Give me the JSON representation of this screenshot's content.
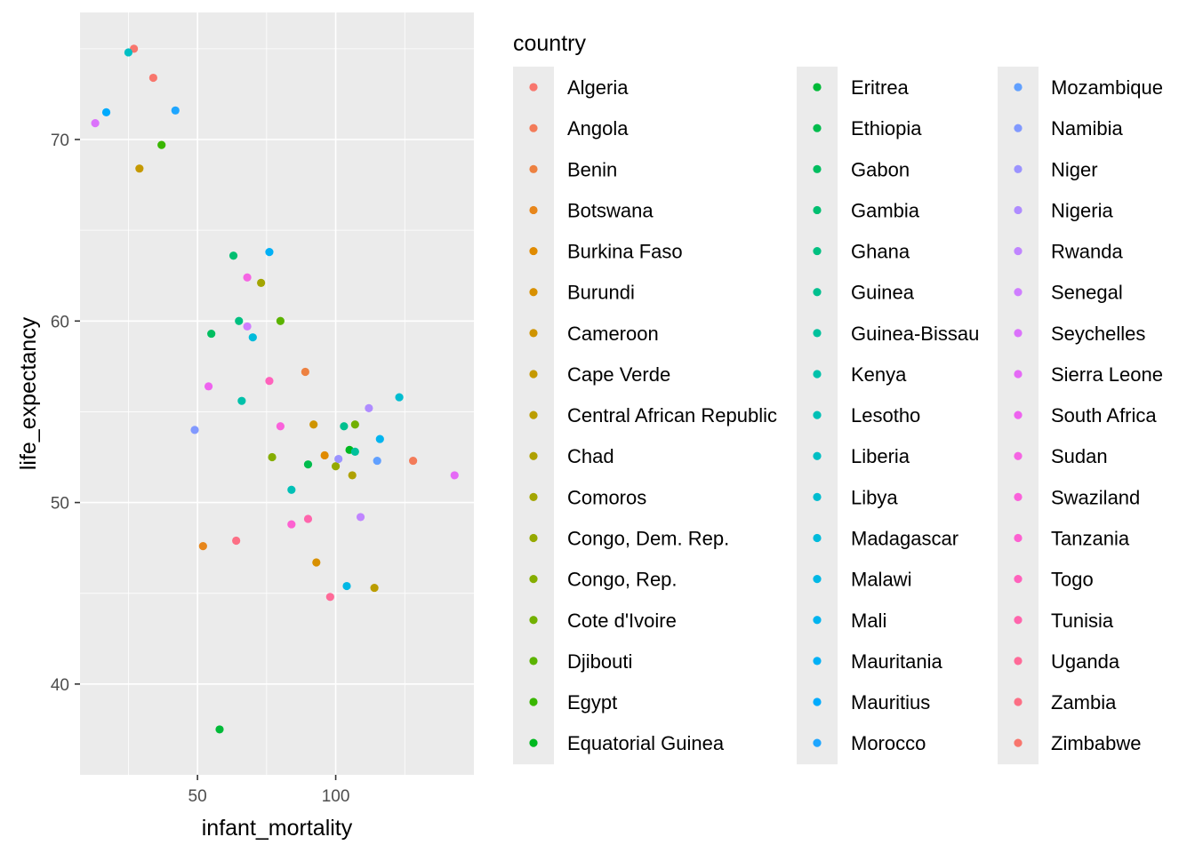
{
  "chart_data": {
    "type": "scatter",
    "xlabel": "infant_mortality",
    "ylabel": "life_expectancy",
    "xlim": [
      7.5,
      150
    ],
    "ylim": [
      35,
      77
    ],
    "x_ticks": [
      50,
      100
    ],
    "x_tick_labels": [
      "50",
      "100"
    ],
    "y_ticks": [
      40,
      50,
      60,
      70
    ],
    "y_tick_labels": [
      "40",
      "50",
      "60",
      "70"
    ],
    "grid": true,
    "panel_background": "#ebebeb",
    "legend": {
      "title": "country",
      "placement": "right",
      "columns": 3
    },
    "series": [
      {
        "name": "Algeria",
        "color": "#F8766D",
        "x": 27,
        "y": 75
      },
      {
        "name": "Angola",
        "color": "#F37B59",
        "x": 128,
        "y": 52.3
      },
      {
        "name": "Benin",
        "color": "#ED8141",
        "x": 89,
        "y": 57.2
      },
      {
        "name": "Botswana",
        "color": "#E7861B",
        "x": 52,
        "y": 47.6
      },
      {
        "name": "Burkina Faso",
        "color": "#E08B00",
        "x": 96,
        "y": 52.6
      },
      {
        "name": "Burundi",
        "color": "#D89000",
        "x": 93,
        "y": 46.7
      },
      {
        "name": "Cameroon",
        "color": "#CF9400",
        "x": 92,
        "y": 54.3
      },
      {
        "name": "Cape Verde",
        "color": "#C59900",
        "x": 29,
        "y": 68.4
      },
      {
        "name": "Central African Republic",
        "color": "#BB9D00",
        "x": 114,
        "y": 45.3
      },
      {
        "name": "Chad",
        "color": "#AFA100",
        "x": 106,
        "y": 51.5
      },
      {
        "name": "Comoros",
        "color": "#A3A500",
        "x": 73,
        "y": 62.1
      },
      {
        "name": "Congo, Dem. Rep.",
        "color": "#95A900",
        "x": 100,
        "y": 52.0
      },
      {
        "name": "Congo, Rep.",
        "color": "#85AD00",
        "x": 77,
        "y": 52.5
      },
      {
        "name": "Cote d'Ivoire",
        "color": "#72B000",
        "x": 107,
        "y": 54.3
      },
      {
        "name": "Djibouti",
        "color": "#5BB300",
        "x": 80,
        "y": 60.0
      },
      {
        "name": "Egypt",
        "color": "#39B600",
        "x": 37,
        "y": 69.7
      },
      {
        "name": "Equatorial Guinea",
        "color": "#00B81F",
        "x": 105,
        "y": 52.9
      },
      {
        "name": "Eritrea",
        "color": "#00BA38",
        "x": 58,
        "y": 37.5
      },
      {
        "name": "Ethiopia",
        "color": "#00BC4D",
        "x": 90,
        "y": 52.1
      },
      {
        "name": "Gabon",
        "color": "#00BE60",
        "x": 55,
        "y": 59.3
      },
      {
        "name": "Gambia",
        "color": "#00BF71",
        "x": 63,
        "y": 63.6
      },
      {
        "name": "Ghana",
        "color": "#00C081",
        "x": 65,
        "y": 60.0
      },
      {
        "name": "Guinea",
        "color": "#00C08F",
        "x": 103,
        "y": 54.2
      },
      {
        "name": "Guinea-Bissau",
        "color": "#00C19C",
        "x": 107,
        "y": 52.8
      },
      {
        "name": "Kenya",
        "color": "#00C1AA",
        "x": 66,
        "y": 55.6
      },
      {
        "name": "Lesotho",
        "color": "#00C0B6",
        "x": 84,
        "y": 50.7
      },
      {
        "name": "Liberia",
        "color": "#00BFC4",
        "x": 25,
        "y": 74.8
      },
      {
        "name": "Libya",
        "color": "#00BDD0",
        "x": 123,
        "y": 55.8
      },
      {
        "name": "Madagascar",
        "color": "#00BBDB",
        "x": 70,
        "y": 59.1
      },
      {
        "name": "Malawi",
        "color": "#00B8E5",
        "x": 104,
        "y": 45.4
      },
      {
        "name": "Mali",
        "color": "#00B4EF",
        "x": 116,
        "y": 53.5
      },
      {
        "name": "Mauritania",
        "color": "#00B0F6",
        "x": 76,
        "y": 63.8
      },
      {
        "name": "Mauritius",
        "color": "#00ABFD",
        "x": 17,
        "y": 71.5
      },
      {
        "name": "Morocco",
        "color": "#1FA6FF",
        "x": 42,
        "y": 71.6
      },
      {
        "name": "Mozambique",
        "color": "#61A0FF",
        "x": 115,
        "y": 52.3
      },
      {
        "name": "Namibia",
        "color": "#8199FF",
        "x": 49,
        "y": 54.0
      },
      {
        "name": "Niger",
        "color": "#9B93FF",
        "x": 101,
        "y": 52.4
      },
      {
        "name": "Nigeria",
        "color": "#AF8CFF",
        "x": 112,
        "y": 55.2
      },
      {
        "name": "Rwanda",
        "color": "#C085FF",
        "x": 109,
        "y": 49.2
      },
      {
        "name": "Senegal",
        "color": "#CF7EFF",
        "x": 68,
        "y": 59.7
      },
      {
        "name": "Seychelles",
        "color": "#DB72FB",
        "x": 13,
        "y": 70.9
      },
      {
        "name": "Sierra Leone",
        "color": "#E56AF6",
        "x": 143,
        "y": 51.5
      },
      {
        "name": "South Africa",
        "color": "#EE63EF",
        "x": 54,
        "y": 56.4
      },
      {
        "name": "Sudan",
        "color": "#F565E3",
        "x": 68,
        "y": 62.4
      },
      {
        "name": "Swaziland",
        "color": "#FA62DB",
        "x": 80,
        "y": 54.2
      },
      {
        "name": "Tanzania",
        "color": "#FD61D1",
        "x": 84,
        "y": 48.8
      },
      {
        "name": "Togo",
        "color": "#FF62BC",
        "x": 76,
        "y": 56.7
      },
      {
        "name": "Tunisia",
        "color": "#FF65AC",
        "x": 90,
        "y": 49.1
      },
      {
        "name": "Uganda",
        "color": "#FF6A98",
        "x": 98,
        "y": 44.8
      },
      {
        "name": "Zambia",
        "color": "#FC6F85",
        "x": 64,
        "y": 47.9
      },
      {
        "name": "Zimbabwe",
        "color": "#F8766D",
        "x": 34,
        "y": 73.4
      }
    ]
  }
}
